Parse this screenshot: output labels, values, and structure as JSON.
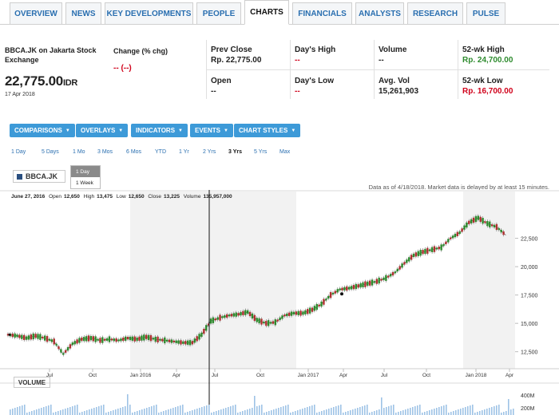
{
  "tabs": [
    {
      "label": "OVERVIEW"
    },
    {
      "label": "NEWS"
    },
    {
      "label": "KEY DEVELOPMENTS"
    },
    {
      "label": "PEOPLE"
    },
    {
      "label": "CHARTS",
      "active": true
    },
    {
      "label": "FINANCIALS"
    },
    {
      "label": "ANALYSTS"
    },
    {
      "label": "RESEARCH"
    },
    {
      "label": "PULSE"
    }
  ],
  "quote": {
    "title": "BBCA.JK on Jakarta Stock Exchange",
    "price": "22,775.00",
    "currency": "IDR",
    "date": "17 Apr 2018",
    "change_label": "Change (% chg)",
    "change_value": "-- (--)",
    "prev_close_label": "Prev Close",
    "prev_close_value": "Rp. 22,775.00",
    "open_label": "Open",
    "open_value": "--",
    "days_high_label": "Day's High",
    "days_high_value": "--",
    "days_low_label": "Day's Low",
    "days_low_value": "--",
    "volume_label": "Volume",
    "volume_value": "--",
    "avg_vol_label": "Avg. Vol",
    "avg_vol_value": "15,261,903",
    "wk52_high_label": "52-wk High",
    "wk52_high_value": "Rp. 24,700.00",
    "wk52_low_label": "52-wk Low",
    "wk52_low_value": "Rp. 16,700.00"
  },
  "toolbar": {
    "comparisons": "COMPARISONS",
    "overlays": "OVERLAYS",
    "indicators": "INDICATORS",
    "events": "EVENTS",
    "chart_styles": "CHART STYLES",
    "caret": "▼"
  },
  "ranges": [
    "1 Day",
    "5 Days",
    "1 Mo",
    "3 Mos",
    "6 Mos",
    "YTD",
    "1 Yr",
    "2 Yrs",
    "3 Yrs",
    "5 Yrs",
    "Max"
  ],
  "active_range": "3 Yrs",
  "ticker_chip": "BBCA.JK",
  "period_dropdown": {
    "selected": "1 Day",
    "options": [
      "1 Day",
      "1 Week"
    ]
  },
  "as_of": "Data as of 4/18/2018. Market data is delayed by at least 15 minutes.",
  "ohlc": {
    "date": "June 27, 2016",
    "open_label": "Open",
    "open": "12,650",
    "high_label": "High",
    "high": "13,475",
    "low_label": "Low",
    "low": "12,650",
    "close_label": "Close",
    "close": "13,225",
    "volume_label": "Volume",
    "volume": "135,957,000"
  },
  "volume_label": "VOLUME",
  "colors": {
    "accent": "#3d9ad8",
    "up": "#2e8b2e",
    "down": "#c0392b",
    "link": "#2a6fb0"
  },
  "chart_data": {
    "type": "line",
    "series": [
      {
        "values": [
          [
            0,
            14000
          ],
          [
            2,
            13900
          ],
          [
            4,
            13700
          ],
          [
            6,
            13900
          ],
          [
            8,
            13700
          ],
          [
            10,
            13400
          ],
          [
            12,
            12300
          ],
          [
            14,
            13200
          ],
          [
            16,
            13600
          ],
          [
            18,
            13700
          ],
          [
            20,
            13500
          ],
          [
            22,
            13600
          ],
          [
            24,
            13500
          ],
          [
            26,
            13700
          ],
          [
            28,
            13600
          ],
          [
            30,
            13800
          ],
          [
            32,
            13600
          ],
          [
            34,
            13500
          ],
          [
            36,
            13400
          ],
          [
            38,
            13300
          ],
          [
            40,
            13300
          ],
          [
            42,
            14000
          ],
          [
            44,
            15200
          ],
          [
            46,
            15500
          ],
          [
            48,
            15700
          ],
          [
            50,
            15800
          ],
          [
            52,
            16000
          ],
          [
            54,
            15300
          ],
          [
            56,
            15000
          ],
          [
            58,
            15100
          ],
          [
            60,
            15700
          ],
          [
            62,
            15900
          ],
          [
            64,
            15900
          ],
          [
            66,
            16200
          ],
          [
            68,
            16700
          ],
          [
            70,
            17500
          ],
          [
            72,
            18000
          ],
          [
            74,
            18100
          ],
          [
            76,
            18300
          ],
          [
            78,
            18500
          ],
          [
            80,
            18700
          ],
          [
            82,
            19000
          ],
          [
            84,
            19500
          ],
          [
            86,
            20300
          ],
          [
            88,
            21000
          ],
          [
            90,
            21300
          ],
          [
            92,
            21500
          ],
          [
            94,
            21700
          ],
          [
            96,
            22500
          ],
          [
            98,
            23000
          ],
          [
            100,
            23900
          ],
          [
            102,
            24300
          ],
          [
            104,
            23800
          ],
          [
            106,
            23500
          ],
          [
            108,
            22775
          ]
        ]
      }
    ],
    "x_tick_labels": [
      "Jul",
      "Oct",
      "Jan 2016",
      "Apr",
      "Jul",
      "Oct",
      "Jan 2017",
      "Apr",
      "Jul",
      "Oct",
      "Jan 2018",
      "Apr"
    ],
    "y_tick_labels": [
      "22,500",
      "20,000",
      "17,500",
      "15,000",
      "12,500"
    ],
    "y_ticks": [
      22500,
      20000,
      17500,
      15000,
      12500
    ],
    "ylim": [
      11000,
      25500
    ],
    "xlim": [
      0,
      110
    ],
    "volume_tick_labels": [
      "400M",
      "200M"
    ]
  }
}
